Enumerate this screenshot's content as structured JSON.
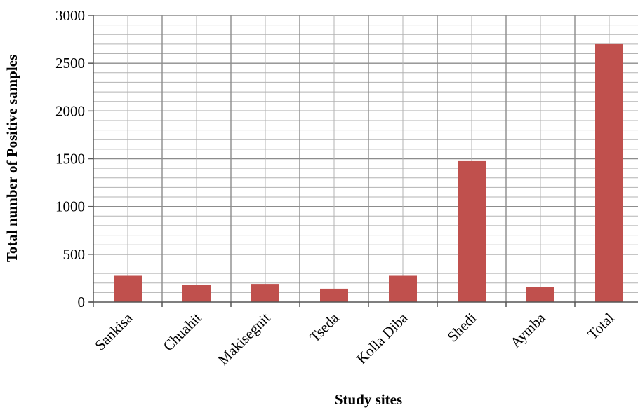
{
  "chart_data": {
    "type": "bar",
    "categories": [
      "Sankisa",
      "Chuahit",
      "Makisegnit",
      "Tseda",
      "Kolla Diba",
      "Shedi",
      "Aymba",
      "Total"
    ],
    "values": [
      275,
      180,
      190,
      140,
      275,
      1475,
      160,
      2700
    ],
    "title": "",
    "xlabel": "Study sites",
    "ylabel": "Total number of Positive samples",
    "ylim": [
      0,
      3000
    ],
    "yticks": [
      0,
      500,
      1000,
      1500,
      2000,
      2500,
      3000
    ],
    "y_minor_step": 100,
    "grid": true,
    "legend": "none",
    "bar_color": "#c0504d",
    "grid_color": "#8c8c8c"
  }
}
